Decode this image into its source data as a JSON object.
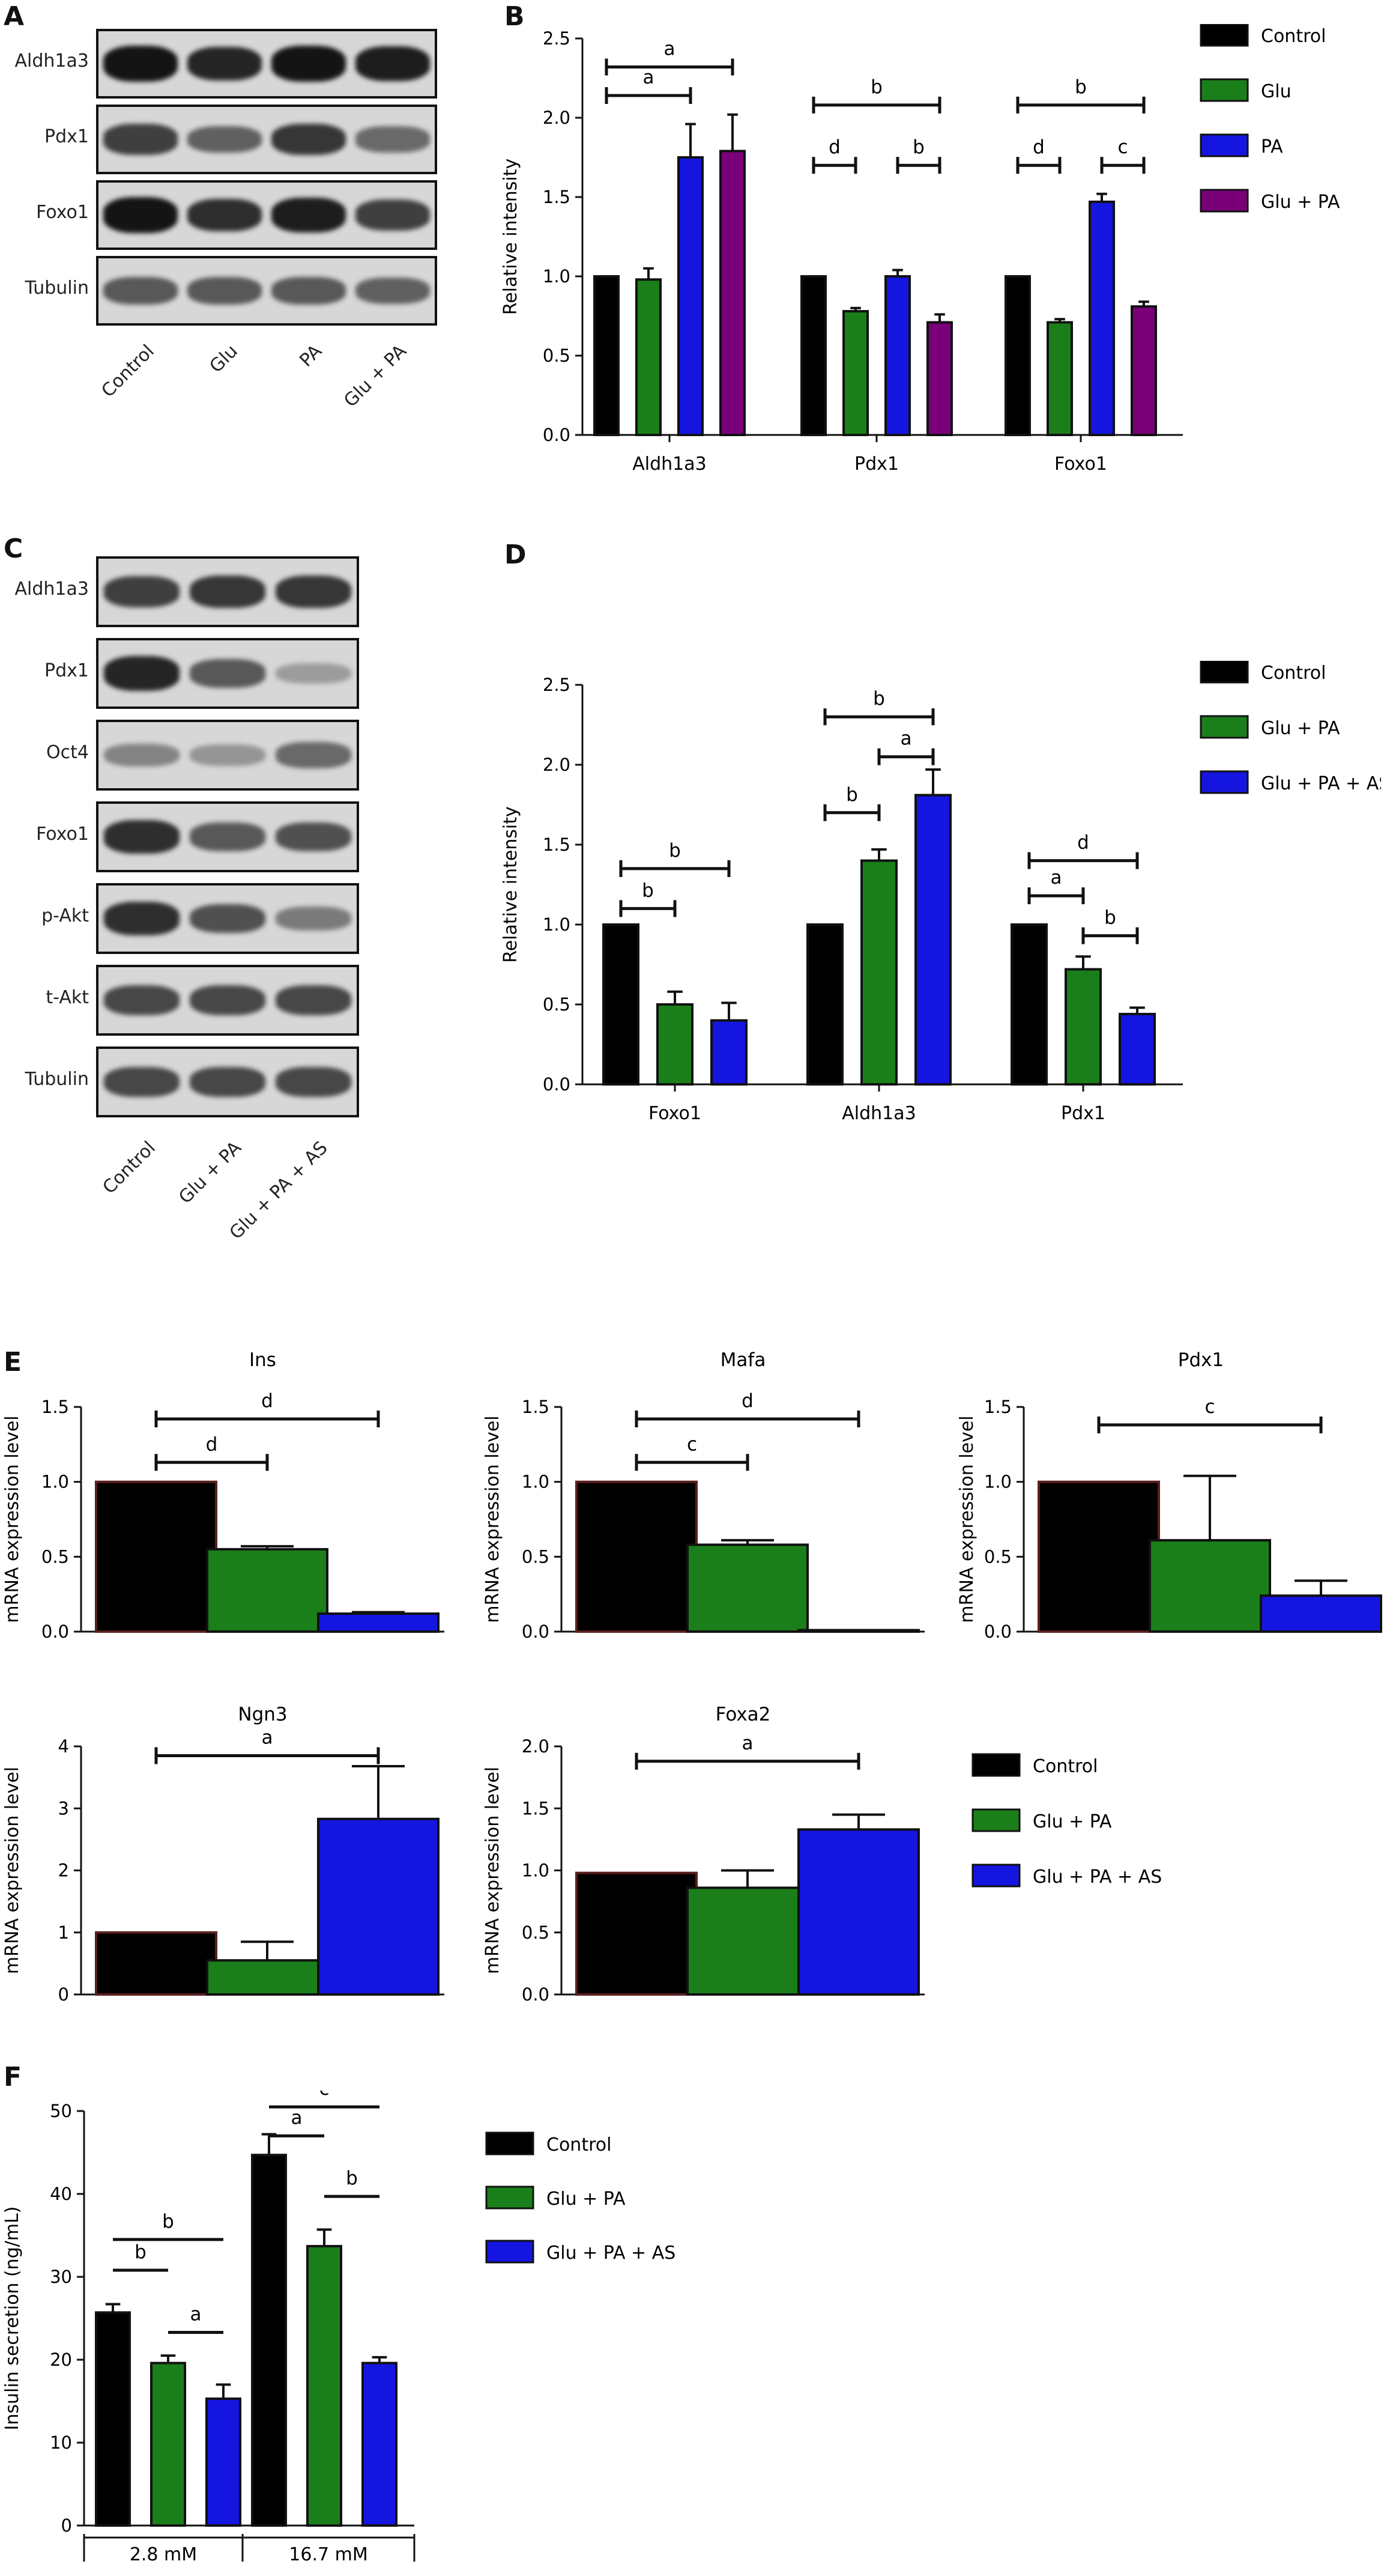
{
  "panels": {
    "A": "A",
    "B": "B",
    "C": "C",
    "D": "D",
    "E": "E",
    "F": "F"
  },
  "blot_A": {
    "rows": [
      "Aldh1a3",
      "Pdx1",
      "Foxo1",
      "Tubulin"
    ],
    "lanes": [
      "Control",
      "Glu",
      "PA",
      "Glu + PA"
    ]
  },
  "blot_C": {
    "rows": [
      "Aldh1a3",
      "Pdx1",
      "Oct4",
      "Foxo1",
      "p-Akt",
      "t-Akt",
      "Tubulin"
    ],
    "lanes": [
      "Control",
      "Glu + PA",
      "Glu + PA + AS"
    ]
  },
  "colors": {
    "control": "#000000",
    "glu": "#1a7f1a",
    "pa": "#1515e0",
    "glu_pa_purple": "#7a007a"
  },
  "chart_data": [
    {
      "panel": "B",
      "type": "bar",
      "categories": [
        "Aldh1a3",
        "Pdx1",
        "Foxo1"
      ],
      "ylabel": "Relative intensity",
      "xlabel": "",
      "ylim": [
        0,
        2.5
      ],
      "yticks": [
        "0.0",
        "0.5",
        "1.0",
        "1.5",
        "2.0",
        "2.5"
      ],
      "legend_position": "right",
      "series": [
        {
          "name": "Control",
          "color": "#000000",
          "values": [
            1.0,
            1.0,
            1.0
          ],
          "errors": [
            0,
            0,
            0
          ]
        },
        {
          "name": "Glu",
          "color": "#1a7f1a",
          "values": [
            0.98,
            0.78,
            0.71
          ],
          "errors": [
            0.07,
            0.02,
            0.02
          ]
        },
        {
          "name": "PA",
          "color": "#1515e0",
          "values": [
            1.75,
            1.0,
            1.47
          ],
          "errors": [
            0.21,
            0.04,
            0.05
          ]
        },
        {
          "name": "Glu + PA",
          "color": "#7a007a",
          "values": [
            1.79,
            0.71,
            0.81
          ],
          "errors": [
            0.23,
            0.05,
            0.03
          ]
        }
      ],
      "annotations": [
        {
          "label": "a",
          "group": 0,
          "from": 0,
          "to": 3,
          "y": 2.32
        },
        {
          "label": "a",
          "group": 0,
          "from": 0,
          "to": 2,
          "y": 2.14
        },
        {
          "label": "b",
          "group": 1,
          "from": 0,
          "to": 3,
          "y": 2.08
        },
        {
          "label": "d",
          "group": 1,
          "from": 0,
          "to": 1,
          "y": 1.7
        },
        {
          "label": "b",
          "group": 1,
          "from": 2,
          "to": 3,
          "y": 1.7
        },
        {
          "label": "b",
          "group": 2,
          "from": 0,
          "to": 3,
          "y": 2.08
        },
        {
          "label": "d",
          "group": 2,
          "from": 0,
          "to": 1,
          "y": 1.7
        },
        {
          "label": "c",
          "group": 2,
          "from": 2,
          "to": 3,
          "y": 1.7
        }
      ]
    },
    {
      "panel": "D",
      "type": "bar",
      "categories": [
        "Foxo1",
        "Aldh1a3",
        "Pdx1"
      ],
      "ylabel": "Relative intensity",
      "xlabel": "",
      "ylim": [
        0,
        2.5
      ],
      "yticks": [
        "0.0",
        "0.5",
        "1.0",
        "1.5",
        "2.0",
        "2.5"
      ],
      "legend_position": "right",
      "series": [
        {
          "name": "Control",
          "color": "#000000",
          "values": [
            1.0,
            1.0,
            1.0
          ],
          "errors": [
            0,
            0,
            0
          ]
        },
        {
          "name": "Glu + PA",
          "color": "#1a7f1a",
          "values": [
            0.5,
            1.4,
            0.72
          ],
          "errors": [
            0.08,
            0.07,
            0.08
          ]
        },
        {
          "name": "Glu + PA + AS",
          "color": "#1515e0",
          "values": [
            0.4,
            1.81,
            0.44
          ],
          "errors": [
            0.11,
            0.16,
            0.04
          ]
        }
      ],
      "annotations": [
        {
          "label": "b",
          "group": 0,
          "from": 0,
          "to": 2,
          "y": 1.35
        },
        {
          "label": "b",
          "group": 0,
          "from": 0,
          "to": 1,
          "y": 1.1
        },
        {
          "label": "b",
          "group": 1,
          "from": 0,
          "to": 2,
          "y": 2.3
        },
        {
          "label": "a",
          "group": 1,
          "from": 1,
          "to": 2,
          "y": 2.05
        },
        {
          "label": "b",
          "group": 1,
          "from": 0,
          "to": 1,
          "y": 1.7
        },
        {
          "label": "d",
          "group": 2,
          "from": 0,
          "to": 2,
          "y": 1.4
        },
        {
          "label": "a",
          "group": 2,
          "from": 0,
          "to": 1,
          "y": 1.18
        },
        {
          "label": "b",
          "group": 2,
          "from": 1,
          "to": 2,
          "y": 0.93
        }
      ]
    },
    {
      "panel": "E",
      "type": "bar",
      "title": "Ins",
      "categories": [
        "Control",
        "Glu + PA",
        "Glu + PA + AS"
      ],
      "ylabel": "mRNA expression level",
      "ylim": [
        0,
        1.5
      ],
      "yticks": [
        "0.0",
        "0.5",
        "1.0",
        "1.5"
      ],
      "values": [
        1.0,
        0.55,
        0.12
      ],
      "errors": [
        0,
        0.02,
        0.01
      ],
      "colors": [
        "#000000",
        "#1a7f1a",
        "#1515e0"
      ],
      "annotations": [
        {
          "label": "d",
          "from": 0,
          "to": 2,
          "y": 1.42
        },
        {
          "label": "d",
          "from": 0,
          "to": 1,
          "y": 1.13
        }
      ]
    },
    {
      "panel": "E",
      "type": "bar",
      "title": "Mafa",
      "categories": [
        "Control",
        "Glu + PA",
        "Glu + PA + AS"
      ],
      "ylabel": "mRNA expression level",
      "ylim": [
        0,
        1.5
      ],
      "yticks": [
        "0.0",
        "0.5",
        "1.0",
        "1.5"
      ],
      "values": [
        1.0,
        0.58,
        0.01
      ],
      "errors": [
        0,
        0.03,
        0.0
      ],
      "colors": [
        "#000000",
        "#1a7f1a",
        "#1515e0"
      ],
      "annotations": [
        {
          "label": "d",
          "from": 0,
          "to": 2,
          "y": 1.42
        },
        {
          "label": "c",
          "from": 0,
          "to": 1,
          "y": 1.13
        }
      ]
    },
    {
      "panel": "E",
      "type": "bar",
      "title": "Pdx1",
      "categories": [
        "Control",
        "Glu + PA",
        "Glu + PA + AS"
      ],
      "ylabel": "mRNA expression level",
      "ylim": [
        0,
        1.5
      ],
      "yticks": [
        "0.0",
        "0.5",
        "1.0",
        "1.5"
      ],
      "values": [
        1.0,
        0.61,
        0.24
      ],
      "errors": [
        0,
        0.43,
        0.1
      ],
      "colors": [
        "#000000",
        "#1a7f1a",
        "#1515e0"
      ],
      "annotations": [
        {
          "label": "c",
          "from": 0,
          "to": 2,
          "y": 1.38
        }
      ]
    },
    {
      "panel": "E",
      "type": "bar",
      "title": "Ngn3",
      "categories": [
        "Control",
        "Glu + PA",
        "Glu + PA + AS"
      ],
      "ylabel": "mRNA expression level",
      "ylim": [
        0,
        4
      ],
      "yticks": [
        "0",
        "1",
        "2",
        "3",
        "4"
      ],
      "values": [
        1.0,
        0.55,
        2.83
      ],
      "errors": [
        0,
        0.3,
        0.85
      ],
      "colors": [
        "#000000",
        "#1a7f1a",
        "#1515e0"
      ],
      "annotations": [
        {
          "label": "a",
          "from": 0,
          "to": 2,
          "y": 3.85
        }
      ]
    },
    {
      "panel": "E",
      "type": "bar",
      "title": "Foxa2",
      "categories": [
        "Control",
        "Glu + PA",
        "Glu + PA + AS"
      ],
      "ylabel": "mRNA expression level",
      "ylim": [
        0,
        2.0
      ],
      "yticks": [
        "0.0",
        "0.5",
        "1.0",
        "1.5",
        "2.0"
      ],
      "values": [
        0.98,
        0.86,
        1.33
      ],
      "errors": [
        0,
        0.14,
        0.12
      ],
      "colors": [
        "#000000",
        "#1a7f1a",
        "#1515e0"
      ],
      "annotations": [
        {
          "label": "a",
          "from": 0,
          "to": 2,
          "y": 1.88
        }
      ],
      "legend": [
        "Control",
        "Glu + PA",
        "Glu + PA + AS"
      ]
    },
    {
      "panel": "F",
      "type": "bar",
      "categories": [
        "2.8 mM",
        "16.7 mM"
      ],
      "ylabel": "Insulin secretion (ng/mL)",
      "ylim": [
        0,
        50
      ],
      "yticks": [
        "0",
        "10",
        "20",
        "30",
        "40",
        "50"
      ],
      "legend_position": "right",
      "series": [
        {
          "name": "Control",
          "color": "#000000",
          "values": [
            25.7,
            44.7
          ],
          "errors": [
            1.0,
            2.5
          ]
        },
        {
          "name": "Glu + PA",
          "color": "#1a7f1a",
          "values": [
            19.6,
            33.7
          ],
          "errors": [
            0.9,
            2.0
          ]
        },
        {
          "name": "Glu + PA + AS",
          "color": "#1515e0",
          "values": [
            15.3,
            19.6
          ],
          "errors": [
            1.7,
            0.7
          ]
        }
      ],
      "annotations": [
        {
          "label": "b",
          "group": 0,
          "from": 0,
          "to": 2,
          "y": 34.5
        },
        {
          "label": "b",
          "group": 0,
          "from": 0,
          "to": 1,
          "y": 30.8
        },
        {
          "label": "a",
          "group": 0,
          "from": 1,
          "to": 2,
          "y": 23.3
        },
        {
          "label": "c",
          "group": 1,
          "from": 0,
          "to": 2,
          "y": 50.5
        },
        {
          "label": "a",
          "group": 1,
          "from": 0,
          "to": 1,
          "y": 47.0
        },
        {
          "label": "b",
          "group": 1,
          "from": 1,
          "to": 2,
          "y": 39.7
        }
      ]
    }
  ]
}
